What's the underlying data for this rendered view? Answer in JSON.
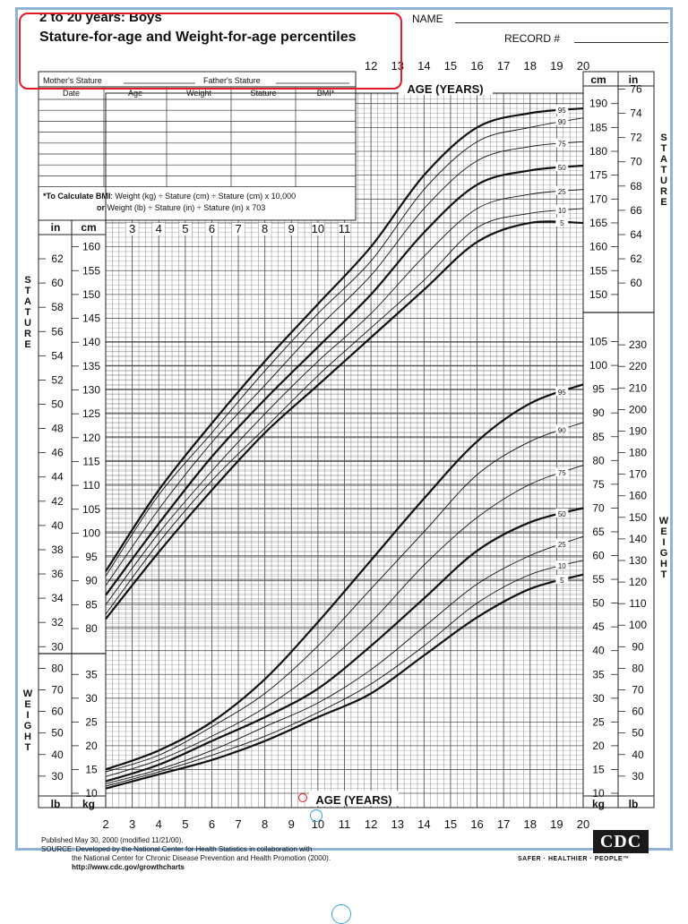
{
  "header": {
    "title_line1": "2 to 20 years: Boys",
    "title_line2": "Stature-for-age and Weight-for-age percentiles",
    "name_label": "NAME",
    "record_label": "RECORD #"
  },
  "record_table": {
    "mothers_stature": "Mother's Stature",
    "fathers_stature": "Father's Stature",
    "columns": [
      "Date",
      "Age",
      "Weight",
      "Stature",
      "BMI*"
    ],
    "bmi_note_line1_bold": "*To Calculate BMI",
    "bmi_note_line1": ": Weight (kg) ÷ Stature (cm) ÷ Stature (cm) x 10,000",
    "bmi_note_line2_bold": "or",
    "bmi_note_line2": " Weight (lb) ÷ Stature (in) ÷ Stature (in) x 703"
  },
  "side_labels": {
    "stature_letters": [
      "S",
      "T",
      "A",
      "T",
      "U",
      "R",
      "E"
    ],
    "weight_letters": [
      "W",
      "E",
      "I",
      "G",
      "H",
      "T"
    ]
  },
  "footer": {
    "line1": "Published May 30, 2000 (modified 11/21/00).",
    "line2": "SOURCE: Developed by the National Center for Health Statistics in collaboration with",
    "line3": "the National Center for Chronic Disease Prevention and Health Promotion (2000).",
    "url": "http://www.cdc.gov/growthcharts",
    "logo": "CDC",
    "tagline": "SAFER · HEALTHIER · PEOPLE™"
  },
  "chart_data": {
    "type": "line",
    "x_axis": {
      "label": "AGE (YEARS)",
      "range": [
        2,
        20
      ],
      "bottom_ticks": [
        2,
        3,
        4,
        5,
        6,
        7,
        8,
        9,
        10,
        11,
        12,
        13,
        14,
        15,
        16,
        17,
        18,
        19,
        20
      ],
      "top_ticks": [
        12,
        13,
        14,
        15,
        16,
        17,
        18,
        19,
        20
      ],
      "inner_ticks": [
        3,
        4,
        5,
        6,
        7,
        8,
        9,
        10,
        11
      ]
    },
    "stature_axis": {
      "unit_cm": "cm",
      "unit_in": "in",
      "range_cm": [
        77,
        192
      ],
      "cm_ticks_left": [
        80,
        85,
        90,
        95,
        100,
        105,
        110,
        115,
        120,
        125,
        130,
        135,
        140,
        145,
        150,
        155,
        160
      ],
      "cm_ticks_right_upper": [
        150,
        155,
        160,
        165,
        170,
        175,
        180,
        185,
        190
      ],
      "in_ticks_left": [
        30,
        32,
        34,
        36,
        38,
        40,
        42,
        44,
        46,
        48,
        50,
        52,
        54,
        56,
        58,
        60,
        62
      ],
      "in_ticks_right_upper": [
        60,
        62,
        64,
        66,
        68,
        70,
        72,
        74,
        76
      ]
    },
    "weight_axis": {
      "unit_kg": "kg",
      "unit_lb": "lb",
      "range_kg": [
        10,
        106
      ],
      "kg_ticks_left": [
        10,
        15,
        20,
        25,
        30,
        35
      ],
      "lb_ticks_left": [
        30,
        40,
        50,
        60,
        70,
        80
      ],
      "kg_ticks_right": [
        10,
        15,
        20,
        25,
        30,
        35,
        40,
        45,
        50,
        55,
        60,
        65,
        70,
        75,
        80,
        85,
        90,
        95,
        100,
        105
      ],
      "lb_ticks_right": [
        30,
        40,
        50,
        60,
        70,
        80,
        90,
        100,
        110,
        120,
        130,
        140,
        150,
        160,
        170,
        180,
        190,
        200,
        210,
        220,
        230
      ]
    },
    "stature_series": [
      {
        "name": "95",
        "ages": [
          2,
          4,
          6,
          8,
          10,
          12,
          14,
          16,
          18,
          20
        ],
        "values": [
          92,
          109,
          123,
          136,
          148,
          160,
          175,
          185,
          188,
          189
        ]
      },
      {
        "name": "90",
        "ages": [
          2,
          4,
          6,
          8,
          10,
          12,
          14,
          16,
          18,
          20
        ],
        "values": [
          91,
          108,
          121,
          134,
          146,
          157,
          172,
          182,
          185,
          187
        ]
      },
      {
        "name": "75",
        "ages": [
          2,
          4,
          6,
          8,
          10,
          12,
          14,
          16,
          18,
          20
        ],
        "values": [
          89,
          105,
          119,
          131,
          143,
          154,
          168,
          178,
          181,
          182
        ]
      },
      {
        "name": "50",
        "ages": [
          2,
          4,
          6,
          8,
          10,
          12,
          14,
          16,
          18,
          20
        ],
        "values": [
          87,
          102,
          116,
          128,
          139,
          150,
          163,
          173,
          176,
          177
        ]
      },
      {
        "name": "25",
        "ages": [
          2,
          4,
          6,
          8,
          10,
          12,
          14,
          16,
          18,
          20
        ],
        "values": [
          85,
          100,
          113,
          125,
          136,
          146,
          158,
          168,
          171,
          172
        ]
      },
      {
        "name": "10",
        "ages": [
          2,
          4,
          6,
          8,
          10,
          12,
          14,
          16,
          18,
          20
        ],
        "values": [
          83,
          98,
          111,
          122,
          133,
          143,
          153,
          164,
          167,
          168
        ]
      },
      {
        "name": "5",
        "ages": [
          2,
          4,
          6,
          8,
          10,
          12,
          14,
          16,
          18,
          20
        ],
        "values": [
          82,
          96,
          109,
          121,
          131,
          141,
          151,
          161,
          165,
          165
        ]
      }
    ],
    "weight_series": [
      {
        "name": "95",
        "ages": [
          2,
          4,
          6,
          8,
          10,
          12,
          14,
          16,
          18,
          20
        ],
        "values": [
          15,
          19,
          25,
          34,
          46,
          59,
          72,
          84,
          92,
          96
        ]
      },
      {
        "name": "90",
        "ages": [
          2,
          4,
          6,
          8,
          10,
          12,
          14,
          16,
          18,
          20
        ],
        "values": [
          14.5,
          18,
          24,
          31,
          41,
          53,
          65,
          77,
          84,
          88
        ]
      },
      {
        "name": "75",
        "ages": [
          2,
          4,
          6,
          8,
          10,
          12,
          14,
          16,
          18,
          20
        ],
        "values": [
          13.5,
          17,
          22,
          28,
          36,
          46,
          58,
          68,
          75,
          79
        ]
      },
      {
        "name": "50",
        "ages": [
          2,
          4,
          6,
          8,
          10,
          12,
          14,
          16,
          18,
          20
        ],
        "values": [
          12.5,
          16,
          21,
          26,
          32,
          41,
          51,
          61,
          67,
          70
        ]
      },
      {
        "name": "25",
        "ages": [
          2,
          4,
          6,
          8,
          10,
          12,
          14,
          16,
          18,
          20
        ],
        "values": [
          12,
          15,
          19,
          24,
          29,
          36,
          45,
          54,
          60,
          64
        ]
      },
      {
        "name": "10",
        "ages": [
          2,
          4,
          6,
          8,
          10,
          12,
          14,
          16,
          18,
          20
        ],
        "values": [
          11.5,
          14.5,
          18,
          22,
          27,
          33,
          41,
          50,
          56,
          59
        ]
      },
      {
        "name": "5",
        "ages": [
          2,
          4,
          6,
          8,
          10,
          12,
          14,
          16,
          18,
          20
        ],
        "values": [
          11,
          14,
          17,
          21,
          26,
          31,
          39,
          47,
          53,
          56
        ]
      }
    ],
    "bold_percentiles": [
      "95",
      "50",
      "5"
    ],
    "grid": true
  }
}
